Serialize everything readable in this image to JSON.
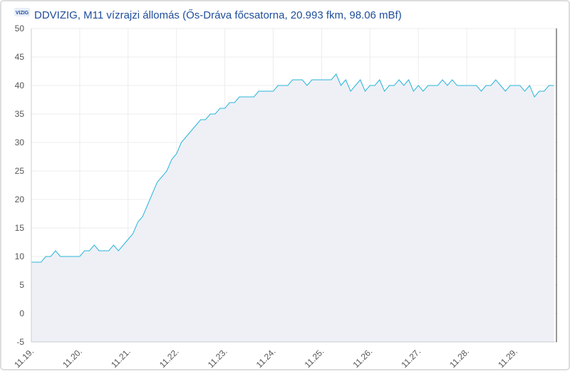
{
  "chart_data": {
    "type": "line",
    "logo_text": "VIZIG",
    "title": "DDVIZIG, M11 vízrajzi állomás (Ős-Dráva főcsatorna, 20.993 fkm, 98.06 mBf)",
    "x": [
      19.0,
      19.1,
      19.2,
      19.3,
      19.4,
      19.5,
      19.6,
      19.7,
      19.8,
      19.9,
      20.0,
      20.1,
      20.2,
      20.3,
      20.4,
      20.5,
      20.6,
      20.7,
      20.8,
      20.9,
      21.0,
      21.1,
      21.2,
      21.3,
      21.4,
      21.5,
      21.6,
      21.7,
      21.8,
      21.9,
      22.0,
      22.1,
      22.2,
      22.3,
      22.4,
      22.5,
      22.6,
      22.7,
      22.8,
      22.9,
      23.0,
      23.1,
      23.2,
      23.3,
      23.4,
      23.5,
      23.6,
      23.7,
      23.8,
      23.9,
      24.0,
      24.1,
      24.2,
      24.3,
      24.4,
      24.5,
      24.6,
      24.7,
      24.8,
      24.9,
      25.0,
      25.1,
      25.2,
      25.3,
      25.4,
      25.5,
      25.6,
      25.7,
      25.8,
      25.9,
      26.0,
      26.1,
      26.2,
      26.3,
      26.4,
      26.5,
      26.6,
      26.7,
      26.8,
      26.9,
      27.0,
      27.1,
      27.2,
      27.3,
      27.4,
      27.5,
      27.6,
      27.7,
      27.8,
      27.9,
      28.0,
      28.1,
      28.2,
      28.3,
      28.4,
      28.5,
      28.6,
      28.7,
      28.8,
      28.9,
      29.0,
      29.1,
      29.2,
      29.3,
      29.4,
      29.5,
      29.6,
      29.7,
      29.8
    ],
    "series": [
      {
        "color": "#29b6d8",
        "fill": "#eef0f6",
        "values": [
          9,
          9,
          9,
          10,
          10,
          11,
          10,
          10,
          10,
          10,
          10,
          11,
          11,
          12,
          11,
          11,
          11,
          12,
          11,
          12,
          13,
          14,
          16,
          17,
          19,
          21,
          23,
          24,
          25,
          27,
          28,
          30,
          31,
          32,
          33,
          34,
          34,
          35,
          35,
          36,
          36,
          37,
          37,
          38,
          38,
          38,
          38,
          39,
          39,
          39,
          39,
          40,
          40,
          40,
          41,
          41,
          41,
          40,
          41,
          41,
          41,
          41,
          41,
          42,
          40,
          41,
          39,
          40,
          41,
          39,
          40,
          40,
          41,
          39,
          40,
          40,
          41,
          40,
          41,
          39,
          40,
          39,
          40,
          40,
          40,
          41,
          40,
          41,
          40,
          40,
          40,
          40,
          40,
          39,
          40,
          40,
          41,
          40,
          39,
          40,
          40,
          40,
          39,
          40,
          38,
          39,
          39,
          40,
          40
        ]
      }
    ],
    "xlim": [
      19,
      29.87
    ],
    "xticks": [
      {
        "value": 19,
        "label": "11.19."
      },
      {
        "value": 20,
        "label": "11.20."
      },
      {
        "value": 21,
        "label": "11.21."
      },
      {
        "value": 22,
        "label": "11.22."
      },
      {
        "value": 23,
        "label": "11.23."
      },
      {
        "value": 24,
        "label": "11.24."
      },
      {
        "value": 25,
        "label": "11.25."
      },
      {
        "value": 26,
        "label": "11.26."
      },
      {
        "value": 27,
        "label": "11.27."
      },
      {
        "value": 28,
        "label": "11.28."
      },
      {
        "value": 29,
        "label": "11.29."
      }
    ],
    "ylim": [
      -5,
      50
    ],
    "yticks": [
      -5,
      0,
      5,
      10,
      15,
      20,
      25,
      30,
      35,
      40,
      45,
      50
    ],
    "grid": true
  }
}
